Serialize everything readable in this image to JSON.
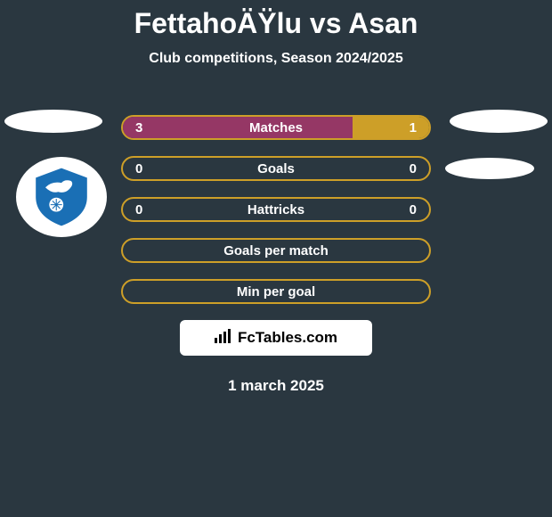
{
  "header": {
    "title": "FettahoÄŸlu vs Asan",
    "subtitle": "Club competitions, Season 2024/2025"
  },
  "colors": {
    "background": "#2a3740",
    "bar_left_color": "#953765",
    "bar_right_color": "#cd9f28",
    "bar_empty_color": "#2a3740",
    "text_color": "#ffffff"
  },
  "badge": {
    "primary_color": "#1a6fb5",
    "secondary_color": "#ffffff"
  },
  "stats": [
    {
      "label": "Matches",
      "left_value": "3",
      "right_value": "1",
      "left_percent": 75,
      "right_percent": 25,
      "border_color": "#cd9f28"
    },
    {
      "label": "Goals",
      "left_value": "0",
      "right_value": "0",
      "left_percent": 0,
      "right_percent": 0,
      "border_color": "#cd9f28"
    },
    {
      "label": "Hattricks",
      "left_value": "0",
      "right_value": "0",
      "left_percent": 0,
      "right_percent": 0,
      "border_color": "#cd9f28"
    },
    {
      "label": "Goals per match",
      "left_value": "",
      "right_value": "",
      "left_percent": 0,
      "right_percent": 0,
      "border_color": "#cd9f28"
    },
    {
      "label": "Min per goal",
      "left_value": "",
      "right_value": "",
      "left_percent": 0,
      "right_percent": 0,
      "border_color": "#cd9f28"
    }
  ],
  "brand": {
    "label": "FcTables.com"
  },
  "date": {
    "label": "1 march 2025"
  }
}
